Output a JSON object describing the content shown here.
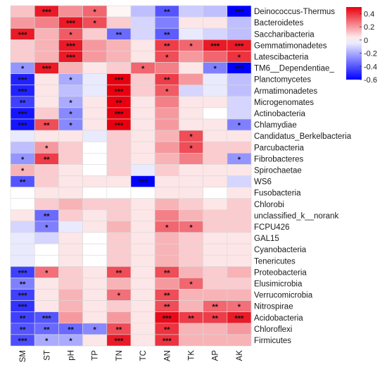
{
  "chart_data": {
    "type": "heatmap",
    "x_labels": [
      "SM",
      "ST",
      "pH",
      "TP",
      "TN",
      "TC",
      "AN",
      "TK",
      "AP",
      "AK"
    ],
    "y_labels": [
      "Deinococcus-Thermus",
      "Bacteroidetes",
      "Saccharibacteria",
      "Gemmatimonadetes",
      "Latescibacteria",
      "TM6__Dependentiae_",
      "Planctomycetes",
      "Armatimonadetes",
      "Microgenomates",
      "Actinobacteria",
      "Chlamydiae",
      "Candidatus_Berkelbacteria",
      "Parcubacteria",
      "Fibrobacteres",
      "Spirochaetae",
      "WS6",
      "Fusobacteria",
      "Chlorobi",
      "unclassified_k__norank",
      "FCPU426",
      "GAL15",
      "Cyanobacteria",
      "Tenericutes",
      "Proteobacteria",
      "Elusimicrobia",
      "Verrucomicrobia",
      "Nitrospirae",
      "Acidobacteria",
      "Chloroflexi",
      "Firmicutes"
    ],
    "values": [
      [
        0.12,
        0.45,
        0.22,
        0.3,
        0.02,
        -0.15,
        -0.4,
        -0.12,
        -0.15,
        -0.62
      ],
      [
        0.2,
        0.25,
        0.45,
        0.35,
        0.1,
        -0.1,
        -0.3,
        0.05,
        0.05,
        -0.15
      ],
      [
        0.45,
        0.15,
        0.32,
        0.1,
        -0.35,
        -0.1,
        -0.38,
        -0.05,
        -0.1,
        -0.15
      ],
      [
        0.1,
        0.15,
        0.45,
        0.2,
        0.15,
        0.05,
        0.38,
        0.3,
        0.45,
        0.45
      ],
      [
        0.1,
        0.15,
        0.45,
        0.2,
        0.15,
        0.05,
        0.35,
        0.2,
        0.3,
        0.4
      ],
      [
        -0.25,
        0.45,
        0.15,
        0.05,
        0.1,
        0.3,
        0.25,
        0.05,
        -0.3,
        -0.6
      ],
      [
        -0.52,
        0.05,
        -0.2,
        -0.05,
        0.52,
        0.1,
        0.38,
        0.2,
        -0.05,
        -0.15
      ],
      [
        -0.52,
        0.05,
        -0.15,
        -0.05,
        0.52,
        0.1,
        0.32,
        -0.1,
        -0.05,
        -0.15
      ],
      [
        -0.45,
        0.05,
        -0.2,
        0.05,
        0.52,
        0.05,
        0.25,
        0.05,
        0.05,
        -0.1
      ],
      [
        -0.55,
        0.1,
        -0.28,
        0.05,
        0.52,
        0.05,
        0.2,
        0.05,
        0.0,
        -0.1
      ],
      [
        -0.55,
        0.35,
        -0.28,
        0.05,
        0.52,
        0.05,
        0.2,
        0.05,
        0.05,
        -0.3
      ],
      [
        -0.05,
        0.05,
        0.05,
        -0.05,
        0.1,
        0.05,
        0.15,
        0.35,
        0.05,
        0.05
      ],
      [
        -0.15,
        0.2,
        0.1,
        0.0,
        0.1,
        0.05,
        0.2,
        0.35,
        0.1,
        0.1
      ],
      [
        -0.25,
        0.38,
        0.1,
        0.0,
        0.1,
        0.05,
        0.15,
        0.25,
        0.1,
        -0.25
      ],
      [
        0.15,
        0.1,
        0.05,
        0.0,
        0.1,
        -0.05,
        0.1,
        0.05,
        0.05,
        0.05
      ],
      [
        -0.4,
        0.1,
        0.05,
        0.05,
        0.05,
        -0.6,
        0.05,
        0.05,
        0.05,
        -0.1
      ],
      [
        0.0,
        0.05,
        0.05,
        0.0,
        0.0,
        0.0,
        0.05,
        0.05,
        0.0,
        0.05
      ],
      [
        0.0,
        0.1,
        0.15,
        0.1,
        0.1,
        0.05,
        0.15,
        0.1,
        0.05,
        0.1
      ],
      [
        0.05,
        -0.35,
        0.1,
        0.05,
        0.1,
        0.05,
        0.25,
        0.15,
        0.1,
        0.1
      ],
      [
        -0.1,
        -0.3,
        -0.05,
        0.05,
        0.15,
        0.05,
        0.3,
        0.28,
        0.1,
        0.1
      ],
      [
        -0.05,
        -0.1,
        0.05,
        0.0,
        0.1,
        0.05,
        0.15,
        0.1,
        0.05,
        0.05
      ],
      [
        -0.05,
        0.0,
        0.05,
        0.0,
        0.1,
        0.05,
        0.15,
        0.1,
        0.05,
        0.05
      ],
      [
        -0.05,
        0.0,
        0.05,
        0.0,
        0.1,
        0.05,
        0.15,
        0.1,
        0.05,
        0.05
      ],
      [
        -0.45,
        0.28,
        0.1,
        0.05,
        0.35,
        0.05,
        0.35,
        0.15,
        0.1,
        0.15
      ],
      [
        -0.3,
        0.05,
        0.1,
        0.05,
        0.15,
        0.05,
        0.2,
        0.3,
        0.1,
        0.1
      ],
      [
        -0.45,
        0.05,
        0.15,
        0.05,
        0.28,
        0.05,
        0.35,
        0.15,
        0.15,
        0.15
      ],
      [
        -0.48,
        0.05,
        0.15,
        0.05,
        0.1,
        0.05,
        0.35,
        0.15,
        0.3,
        0.28
      ],
      [
        -0.45,
        -0.4,
        0.2,
        0.05,
        0.2,
        0.05,
        0.48,
        0.38,
        0.38,
        0.45
      ],
      [
        -0.4,
        -0.35,
        -0.35,
        -0.28,
        0.35,
        0.05,
        0.4,
        0.15,
        0.15,
        0.2
      ],
      [
        -0.42,
        -0.2,
        -0.2,
        0.05,
        0.45,
        0.05,
        0.4,
        0.15,
        0.15,
        0.15
      ]
    ],
    "significance": [
      [
        "",
        "***",
        "",
        "*",
        "",
        "",
        "**",
        "",
        "",
        "***"
      ],
      [
        "",
        "",
        "***",
        "*",
        "",
        "",
        "",
        "",
        "",
        ""
      ],
      [
        "***",
        "",
        "*",
        "",
        "**",
        "",
        "**",
        "",
        "",
        ""
      ],
      [
        "",
        "",
        "***",
        "",
        "",
        "",
        "**",
        "*",
        "***",
        "***"
      ],
      [
        "",
        "",
        "***",
        "",
        "",
        "",
        "*",
        "",
        "",
        "*"
      ],
      [
        "*",
        "***",
        "",
        "",
        "",
        "*",
        "",
        "",
        "*",
        "***"
      ],
      [
        "***",
        "",
        "*",
        "",
        "***",
        "",
        "**",
        "",
        "",
        ""
      ],
      [
        "***",
        "",
        "",
        "",
        "***",
        "",
        "*",
        "",
        "",
        ""
      ],
      [
        "**",
        "",
        "*",
        "",
        "**",
        "",
        "",
        "",
        "",
        ""
      ],
      [
        "***",
        "",
        "*",
        "",
        "***",
        "",
        "",
        "",
        "",
        ""
      ],
      [
        "***",
        "**",
        "*",
        "",
        "***",
        "",
        "",
        "",
        "",
        "*"
      ],
      [
        "",
        "",
        "",
        "",
        "",
        "",
        "",
        "*",
        "",
        ""
      ],
      [
        "",
        "*",
        "",
        "",
        "",
        "",
        "",
        "*",
        "",
        ""
      ],
      [
        "*",
        "**",
        "",
        "",
        "",
        "",
        "",
        "",
        "",
        "*"
      ],
      [
        "*",
        "",
        "",
        "",
        "",
        "",
        "",
        "",
        "",
        ""
      ],
      [
        "**",
        "",
        "",
        "",
        "",
        "***",
        "",
        "",
        "",
        ""
      ],
      [
        "",
        "",
        "",
        "",
        "",
        "",
        "",
        "",
        "",
        ""
      ],
      [
        "",
        "",
        "",
        "",
        "",
        "",
        "",
        "",
        "",
        ""
      ],
      [
        "",
        "**",
        "",
        "",
        "",
        "",
        "",
        "",
        "",
        ""
      ],
      [
        "",
        "*",
        "",
        "",
        "",
        "",
        "*",
        "*",
        "",
        ""
      ],
      [
        "",
        "",
        "",
        "",
        "",
        "",
        "",
        "",
        "",
        ""
      ],
      [
        "",
        "",
        "",
        "",
        "",
        "",
        "",
        "",
        "",
        ""
      ],
      [
        "",
        "",
        "",
        "",
        "",
        "",
        "",
        "",
        "",
        ""
      ],
      [
        "***",
        "*",
        "",
        "",
        "**",
        "",
        "**",
        "",
        "",
        ""
      ],
      [
        "**",
        "",
        "",
        "",
        "",
        "",
        "",
        "*",
        "",
        ""
      ],
      [
        "***",
        "",
        "",
        "",
        "*",
        "",
        "**",
        "",
        "",
        ""
      ],
      [
        "***",
        "",
        "",
        "",
        "",
        "",
        "**",
        "",
        "**",
        "*"
      ],
      [
        "**",
        "***",
        "",
        "",
        "",
        "",
        "***",
        "**",
        "**",
        "***"
      ],
      [
        "**",
        "**",
        "**",
        "*",
        "**",
        "",
        "**",
        "",
        "",
        ""
      ],
      [
        "***",
        "*",
        "*",
        "",
        "***",
        "",
        "***",
        "",
        "",
        ""
      ]
    ],
    "colorbar": {
      "range": [
        -0.6,
        0.5
      ],
      "ticks": [
        0.4,
        0.2,
        0,
        -0.2,
        -0.4,
        -0.6
      ],
      "tick_labels": [
        "0.4",
        "0.2",
        "0",
        "-0.2",
        "-0.4",
        "-0.6"
      ],
      "colors": {
        "negative": "#0000ff",
        "neutral": "#ffffff",
        "positive": "#e8000f"
      }
    },
    "grid": true,
    "legend": "top-right colorbar"
  }
}
